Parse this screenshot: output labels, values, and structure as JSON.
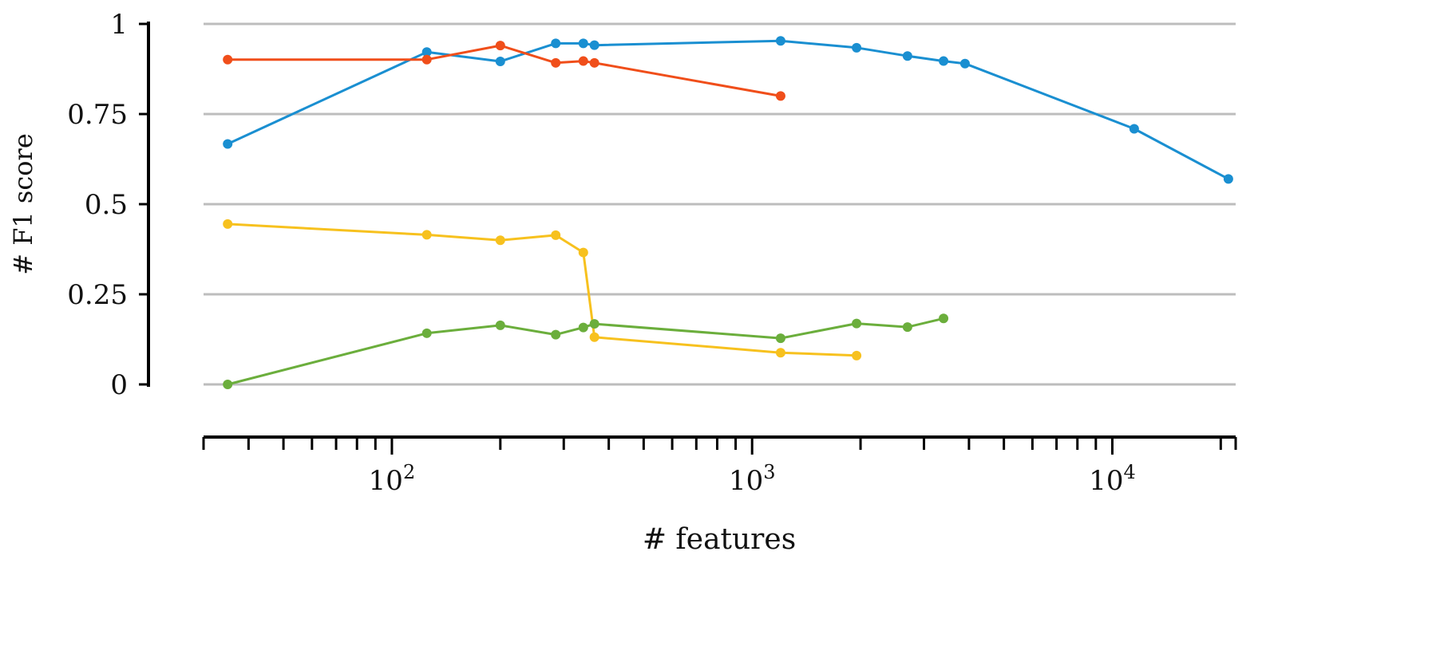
{
  "chart_data": {
    "type": "line",
    "title": "",
    "xlabel": "# features",
    "ylabel": "# F1 score",
    "x_scale": "log",
    "xlim": [
      30,
      22000
    ],
    "ylim": [
      0,
      1
    ],
    "grid": true,
    "y_ticks": [
      {
        "value": 0,
        "label": "0"
      },
      {
        "value": 0.25,
        "label": "0.25"
      },
      {
        "value": 0.5,
        "label": "0.5"
      },
      {
        "value": 0.75,
        "label": "0.75"
      },
      {
        "value": 1,
        "label": "1"
      }
    ],
    "x_ticks": [
      {
        "value": 100,
        "base": "10",
        "exp": "2"
      },
      {
        "value": 1000,
        "base": "10",
        "exp": "3"
      },
      {
        "value": 10000,
        "base": "10",
        "exp": "4"
      }
    ],
    "series": [
      {
        "color": "#1a8fd1",
        "points": [
          [
            35,
            0.667
          ],
          [
            125,
            0.922
          ],
          [
            200,
            0.896
          ],
          [
            285,
            0.946
          ],
          [
            340,
            0.946
          ],
          [
            365,
            0.941
          ],
          [
            1200,
            0.953
          ],
          [
            1950,
            0.934
          ],
          [
            2700,
            0.911
          ],
          [
            3400,
            0.897
          ],
          [
            3900,
            0.89
          ],
          [
            11500,
            0.709
          ],
          [
            21000,
            0.57
          ]
        ]
      },
      {
        "color": "#f04e1a",
        "points": [
          [
            35,
            0.901
          ],
          [
            125,
            0.901
          ],
          [
            200,
            0.94
          ],
          [
            285,
            0.892
          ],
          [
            340,
            0.897
          ],
          [
            365,
            0.892
          ],
          [
            1200,
            0.8
          ]
        ]
      },
      {
        "color": "#f7c11e",
        "points": [
          [
            35,
            0.445
          ],
          [
            125,
            0.415
          ],
          [
            200,
            0.4
          ],
          [
            285,
            0.414
          ],
          [
            340,
            0.366
          ],
          [
            365,
            0.131
          ],
          [
            1200,
            0.088
          ],
          [
            1950,
            0.08
          ]
        ]
      },
      {
        "color": "#6bae3c",
        "points": [
          [
            35,
            0.0
          ],
          [
            125,
            0.142
          ],
          [
            200,
            0.164
          ],
          [
            285,
            0.138
          ],
          [
            340,
            0.158
          ],
          [
            365,
            0.168
          ],
          [
            1200,
            0.128
          ],
          [
            1950,
            0.169
          ],
          [
            2700,
            0.159
          ],
          [
            3400,
            0.183
          ]
        ]
      }
    ]
  }
}
